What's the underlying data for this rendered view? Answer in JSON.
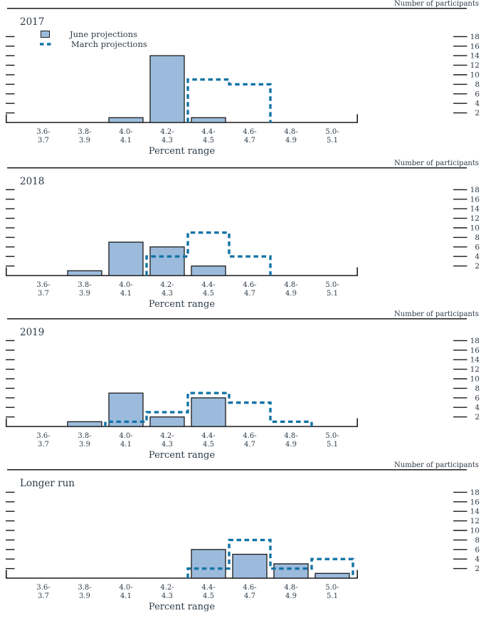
{
  "figure": {
    "y_axis_label": "Number of participants",
    "x_axis_label": "Percent range",
    "y_ticks": [
      2,
      4,
      6,
      8,
      10,
      12,
      14,
      16,
      18
    ],
    "bin_labels": [
      [
        "3.6-",
        "3.7"
      ],
      [
        "3.8-",
        "3.9"
      ],
      [
        "4.0-",
        "4.1"
      ],
      [
        "4.2-",
        "4.3"
      ],
      [
        "4.4-",
        "4.5"
      ],
      [
        "4.6-",
        "4.7"
      ],
      [
        "4.8-",
        "4.9"
      ],
      [
        "5.0-",
        "5.1"
      ]
    ],
    "legend": {
      "june": "June projections",
      "march": "March projections"
    },
    "colors": {
      "bar_fill": "#9cbbdc",
      "bar_border": "#1a1a1a",
      "march_line": "#1273a5",
      "axis": "#1a1a1a",
      "text": "#2e3a45"
    }
  },
  "chart_data": [
    {
      "type": "bar",
      "title": "2017",
      "categories": [
        "3.6-3.7",
        "3.8-3.9",
        "4.0-4.1",
        "4.2-4.3",
        "4.4-4.5",
        "4.6-4.7",
        "4.8-4.9",
        "5.0-5.1"
      ],
      "xlabel": "Percent range",
      "ylabel": "Number of participants",
      "ylim": [
        0,
        19
      ],
      "legend_position": "top-left",
      "series": [
        {
          "name": "June projections",
          "style": "filled-bar",
          "values": [
            0,
            0,
            1,
            14,
            1,
            0,
            0,
            0
          ]
        },
        {
          "name": "March projections",
          "style": "dashed-step",
          "values": [
            0,
            0,
            0,
            0,
            9,
            8,
            0,
            0
          ]
        }
      ]
    },
    {
      "type": "bar",
      "title": "2018",
      "categories": [
        "3.6-3.7",
        "3.8-3.9",
        "4.0-4.1",
        "4.2-4.3",
        "4.4-4.5",
        "4.6-4.7",
        "4.8-4.9",
        "5.0-5.1"
      ],
      "xlabel": "Percent range",
      "ylabel": "Number of participants",
      "ylim": [
        0,
        19
      ],
      "series": [
        {
          "name": "June projections",
          "style": "filled-bar",
          "values": [
            0,
            1,
            7,
            6,
            2,
            0,
            0,
            0
          ]
        },
        {
          "name": "March projections",
          "style": "dashed-step",
          "values": [
            0,
            0,
            0,
            4,
            9,
            4,
            0,
            0
          ]
        }
      ]
    },
    {
      "type": "bar",
      "title": "2019",
      "categories": [
        "3.6-3.7",
        "3.8-3.9",
        "4.0-4.1",
        "4.2-4.3",
        "4.4-4.5",
        "4.6-4.7",
        "4.8-4.9",
        "5.0-5.1"
      ],
      "xlabel": "Percent range",
      "ylabel": "Number of participants",
      "ylim": [
        0,
        19
      ],
      "series": [
        {
          "name": "June projections",
          "style": "filled-bar",
          "values": [
            0,
            1,
            7,
            2,
            6,
            0,
            0,
            0
          ]
        },
        {
          "name": "March projections",
          "style": "dashed-step",
          "values": [
            0,
            0,
            1,
            3,
            7,
            5,
            1,
            0
          ]
        }
      ]
    },
    {
      "type": "bar",
      "title": "Longer run",
      "categories": [
        "3.6-3.7",
        "3.8-3.9",
        "4.0-4.1",
        "4.2-4.3",
        "4.4-4.5",
        "4.6-4.7",
        "4.8-4.9",
        "5.0-5.1"
      ],
      "xlabel": "Percent range",
      "ylabel": "Number of participants",
      "ylim": [
        0,
        19
      ],
      "series": [
        {
          "name": "June projections",
          "style": "filled-bar",
          "values": [
            0,
            0,
            0,
            0,
            6,
            5,
            3,
            1
          ]
        },
        {
          "name": "March projections",
          "style": "dashed-step",
          "values": [
            0,
            0,
            0,
            0,
            2,
            8,
            2,
            4
          ]
        }
      ]
    }
  ]
}
